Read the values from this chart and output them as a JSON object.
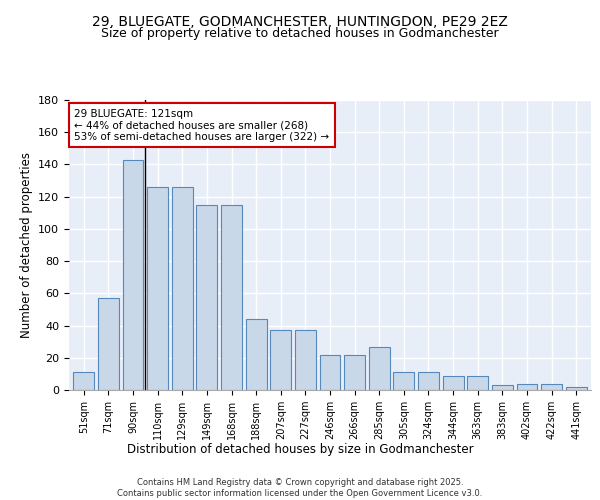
{
  "title": "29, BLUEGATE, GODMANCHESTER, HUNTINGDON, PE29 2EZ",
  "subtitle": "Size of property relative to detached houses in Godmanchester",
  "xlabel": "Distribution of detached houses by size in Godmanchester",
  "ylabel": "Number of detached properties",
  "categories": [
    "51sqm",
    "71sqm",
    "90sqm",
    "110sqm",
    "129sqm",
    "149sqm",
    "168sqm",
    "188sqm",
    "207sqm",
    "227sqm",
    "246sqm",
    "266sqm",
    "285sqm",
    "305sqm",
    "324sqm",
    "344sqm",
    "363sqm",
    "383sqm",
    "402sqm",
    "422sqm",
    "441sqm"
  ],
  "bar_values": [
    11,
    57,
    143,
    126,
    126,
    115,
    115,
    44,
    37,
    37,
    22,
    22,
    27,
    11,
    11,
    9,
    9,
    3,
    4,
    4,
    2
  ],
  "bar_color": "#c8d8e8",
  "bar_edge_color": "#5588bb",
  "annotation_text": "29 BLUEGATE: 121sqm\n← 44% of detached houses are smaller (268)\n53% of semi-detached houses are larger (322) →",
  "annotation_box_color": "#ffffff",
  "annotation_box_edge": "#cc0000",
  "vline_x_index": 2.5,
  "copyright_text": "Contains HM Land Registry data © Crown copyright and database right 2025.\nContains public sector information licensed under the Open Government Licence v3.0.",
  "ylim": [
    0,
    180
  ],
  "bg_color": "#e8eef8",
  "grid_color": "#ffffff"
}
